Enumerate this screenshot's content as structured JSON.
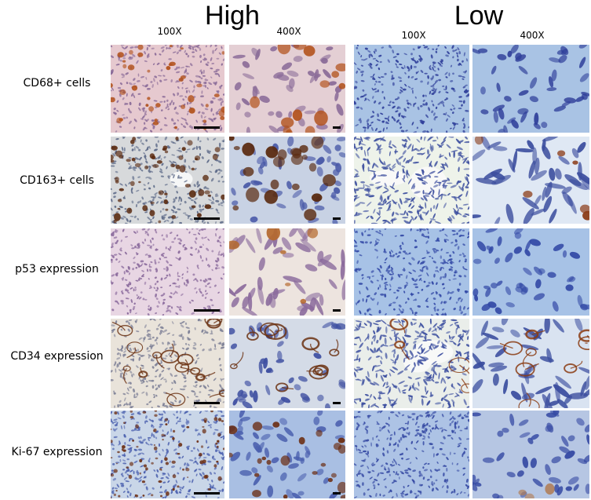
{
  "groups": {
    "high": "High",
    "low": "Low"
  },
  "magnifications": {
    "high_low_mag": "100X",
    "high_high_mag": "400X",
    "low_low_mag": "100X",
    "low_high_mag": "400X"
  },
  "rows": [
    {
      "label": "CD68+ cells"
    },
    {
      "label": "CD163+ cells"
    },
    {
      "label": "p53 expression"
    },
    {
      "label": "CD34 expression"
    },
    {
      "label": "Ki-67 expression"
    }
  ],
  "colors": {
    "hematoxylin_bg_blue": "#a9c3e4",
    "hematoxylin_nuclei": "#2f3f9a",
    "pink_stroma": "#e8d6e3",
    "purple_nuclei": "#8a6a9c",
    "dab_brown": "#8b3b16",
    "dab_light": "#c47a3c",
    "pale_green": "#eef3ea"
  }
}
